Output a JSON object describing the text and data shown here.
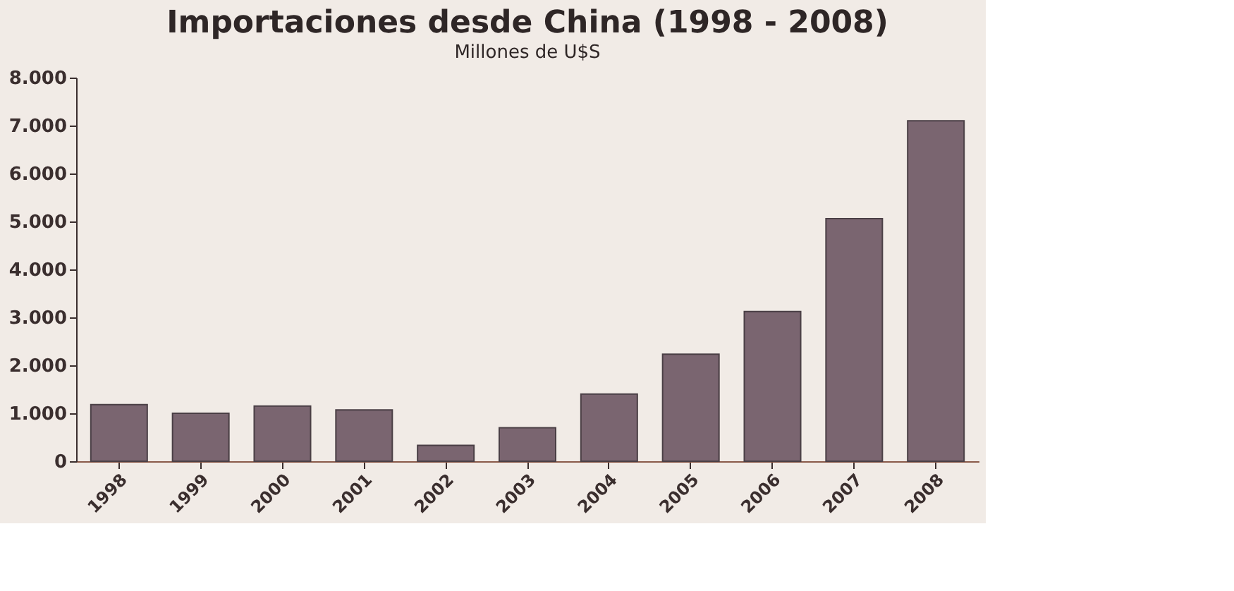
{
  "chart_data": {
    "type": "bar",
    "title": "Importaciones desde China (1998 - 2008)",
    "subtitle": "Millones de U$S",
    "categories": [
      "1998",
      "1999",
      "2000",
      "2001",
      "2002",
      "2003",
      "2004",
      "2005",
      "2006",
      "2007",
      "2008"
    ],
    "values": [
      1180,
      1000,
      1150,
      1070,
      330,
      700,
      1400,
      2230,
      3120,
      5060,
      7100
    ],
    "color": "#7a6570",
    "ylim": [
      0,
      8000
    ],
    "yticks": [
      {
        "value": 0,
        "label": "0"
      },
      {
        "value": 1000,
        "label": "1.000"
      },
      {
        "value": 2000,
        "label": "2.000"
      },
      {
        "value": 3000,
        "label": "3.000"
      },
      {
        "value": 4000,
        "label": "4.000"
      },
      {
        "value": 5000,
        "label": "5.000"
      },
      {
        "value": 6000,
        "label": "6.000"
      },
      {
        "value": 7000,
        "label": "7.000"
      },
      {
        "value": 8000,
        "label": "8.000"
      }
    ],
    "grid": false
  }
}
